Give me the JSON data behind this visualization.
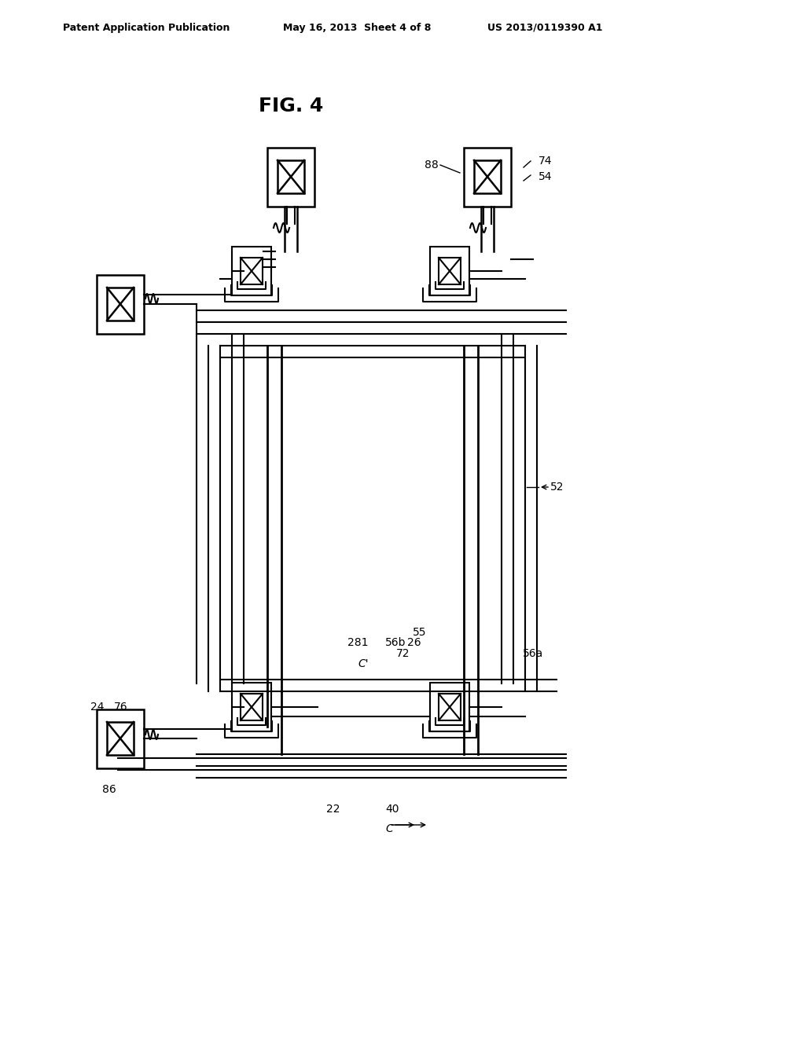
{
  "title": "FIG. 4",
  "header_left": "Patent Application Publication",
  "header_center": "May 16, 2013  Sheet 4 of 8",
  "header_right": "US 2013/0119390 A1",
  "bg_color": "#ffffff",
  "line_color": "#000000",
  "fig_width": 10.24,
  "fig_height": 13.2
}
